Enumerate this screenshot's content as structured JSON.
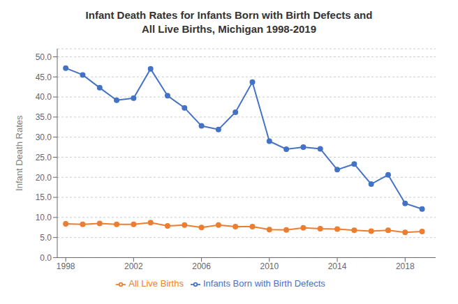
{
  "chart_data": {
    "type": "line",
    "title": "Infant Death Rates for Infants Born with Birth Defects and\nAll Live Births, Michigan 1998-2019",
    "ylabel": "Infant Death Rates",
    "x": [
      1998,
      1999,
      2000,
      2001,
      2002,
      2003,
      2004,
      2005,
      2006,
      2007,
      2008,
      2009,
      2010,
      2011,
      2012,
      2013,
      2014,
      2015,
      2016,
      2017,
      2018,
      2019
    ],
    "series": [
      {
        "name": "Infants Born with Birth Defects",
        "color": "#4472C4",
        "values": [
          47.2,
          45.5,
          42.3,
          39.2,
          39.7,
          47.0,
          40.3,
          37.3,
          32.8,
          31.9,
          36.2,
          43.7,
          29.0,
          27.0,
          27.5,
          27.1,
          21.9,
          23.3,
          18.3,
          20.6,
          13.5,
          12.1
        ]
      },
      {
        "name": "All Live Births",
        "color": "#ED7D31",
        "values": [
          8.4,
          8.3,
          8.5,
          8.3,
          8.3,
          8.7,
          7.9,
          8.1,
          7.5,
          8.1,
          7.7,
          7.7,
          7.0,
          6.9,
          7.4,
          7.2,
          7.1,
          6.8,
          6.6,
          6.8,
          6.3,
          6.5
        ]
      }
    ],
    "xlim": [
      1997.5,
      2019.8
    ],
    "xticks": [
      1998,
      2002,
      2006,
      2010,
      2014,
      2018
    ],
    "ylim": [
      0.0,
      52.0
    ],
    "yticks": [
      {
        "value": 0.0,
        "label": "0.0"
      },
      {
        "value": 5.0,
        "label": "5.0"
      },
      {
        "value": 10.0,
        "label": "10.0"
      },
      {
        "value": 15.0,
        "label": "15.0"
      },
      {
        "value": 20.0,
        "label": "20.0"
      },
      {
        "value": 25.0,
        "label": "25.0"
      },
      {
        "value": 30.0,
        "label": "30.0"
      },
      {
        "value": 35.0,
        "label": "35.0"
      },
      {
        "value": 40.0,
        "label": "40.0"
      },
      {
        "value": 45.0,
        "label": "45.0"
      },
      {
        "value": 50.0,
        "label": "50.0"
      }
    ],
    "grid": true,
    "legend": "bottom",
    "marker": "circle"
  }
}
